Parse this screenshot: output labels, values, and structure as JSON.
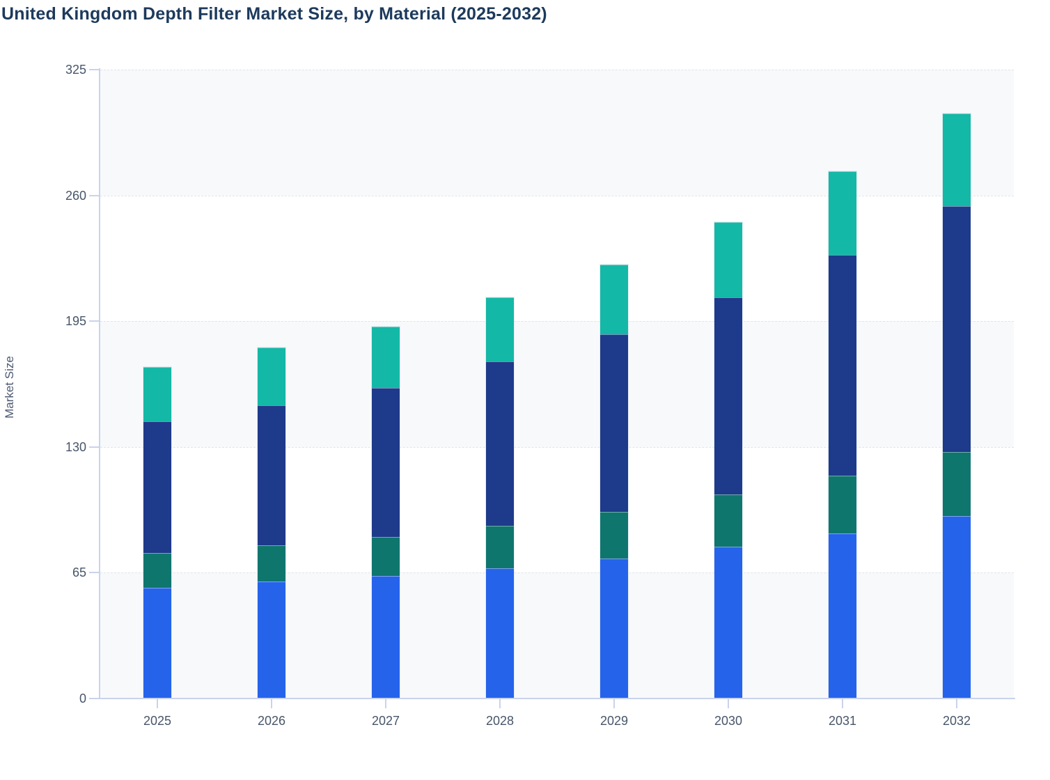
{
  "title": "United Kingdom Depth Filter Market Size, by Material (2025-2032)",
  "y_axis_title": "Market Size",
  "chart_data": {
    "type": "bar",
    "stacked": true,
    "title": "United Kingdom Depth Filter Market Size, by Material (2025-2032)",
    "xlabel": "",
    "ylabel": "Market Size",
    "categories": [
      "2025",
      "2026",
      "2027",
      "2028",
      "2029",
      "2030",
      "2031",
      "2032"
    ],
    "series": [
      {
        "name": "Blue (bottom segment)",
        "color": "#2563eb",
        "values": [
          57,
          60,
          63,
          67,
          72,
          78,
          85,
          94
        ]
      },
      {
        "name": "Dark teal (second segment)",
        "color": "#0f766e",
        "values": [
          18,
          19,
          20,
          22,
          24,
          27,
          30,
          33
        ]
      },
      {
        "name": "Navy (third segment)",
        "color": "#1e3a8a",
        "values": [
          68,
          72,
          77,
          85,
          92,
          102,
          114,
          127
        ]
      },
      {
        "name": "Turquoise (top segment)",
        "color": "#14b8a6",
        "values": [
          28,
          30,
          32,
          33,
          36,
          39,
          43,
          48
        ]
      }
    ],
    "stack_totals": [
      171,
      181,
      192,
      207,
      224,
      246,
      272,
      302
    ],
    "y_ticks": [
      0,
      65,
      130,
      195,
      260,
      325
    ],
    "ylim": [
      0,
      325
    ],
    "grid": "horizontal-dashed",
    "band_shading": "alternating",
    "legend": "none"
  },
  "colors": {
    "title_text": "#1d3a5c",
    "axis_line": "#c9d3ec",
    "tick_text": "#475569",
    "gridline": "#e0e4ea",
    "band_light": "#f7f9fb",
    "band_white": "#ffffff"
  }
}
